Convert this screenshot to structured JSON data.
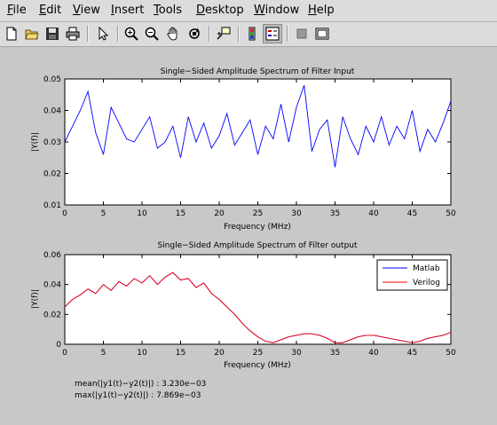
{
  "menu": [
    "File",
    "Edit",
    "View",
    "Insert",
    "Tools",
    "Desktop",
    "Window",
    "Help"
  ],
  "menu_mnemonics": [
    "F",
    "E",
    "V",
    "I",
    "T",
    "D",
    "W",
    "H"
  ],
  "toolbar": {
    "icons": [
      "new-figure-icon",
      "open-file-icon",
      "save-icon",
      "print-icon",
      "select-arrow-icon",
      "zoom-in-icon",
      "zoom-out-icon",
      "pan-hand-icon",
      "rotate-3d-icon",
      "data-cursor-icon",
      "colorbar-icon",
      "legend-icon",
      "hide-plot-tools-icon",
      "show-plot-tools-icon"
    ]
  },
  "colors": {
    "matlab": "#0000ff",
    "verilog": "#ff0000",
    "plot_bg": "#ffffff",
    "figure_bg": "#c8c8c8"
  },
  "stats": {
    "mean": "mean(|y1(t)−y2(t)|) : 3.230e−03",
    "max": "max(|y1(t)−y2(t)|) : 7.869e−03"
  },
  "chart_data": [
    {
      "type": "line",
      "title": "Single−Sided Amplitude Spectrum of Filter Input",
      "xlabel": "Frequency (MHz)",
      "ylabel": "|Y(f)|",
      "xlim": [
        0,
        50
      ],
      "ylim": [
        0.01,
        0.05
      ],
      "xticks": [
        0,
        5,
        10,
        15,
        20,
        25,
        30,
        35,
        40,
        45,
        50
      ],
      "yticks": [
        0.01,
        0.02,
        0.03,
        0.04,
        0.05
      ],
      "ytick_labels": [
        "0.01",
        "0.02",
        "0.03",
        "0.04",
        "0.05"
      ],
      "series": [
        {
          "color": "#0000ff",
          "x": [
            0,
            1,
            2,
            3,
            4,
            5,
            6,
            7,
            8,
            9,
            10,
            11,
            12,
            13,
            14,
            15,
            16,
            17,
            18,
            19,
            20,
            21,
            22,
            23,
            24,
            25,
            26,
            27,
            28,
            29,
            30,
            31,
            32,
            33,
            34,
            35,
            36,
            37,
            38,
            39,
            40,
            41,
            42,
            43,
            44,
            45,
            46,
            47,
            48,
            49,
            50
          ],
          "y": [
            0.03,
            0.035,
            0.04,
            0.046,
            0.033,
            0.026,
            0.041,
            0.036,
            0.031,
            0.03,
            0.034,
            0.038,
            0.028,
            0.03,
            0.035,
            0.025,
            0.038,
            0.03,
            0.036,
            0.028,
            0.032,
            0.039,
            0.029,
            0.033,
            0.037,
            0.026,
            0.035,
            0.031,
            0.042,
            0.03,
            0.041,
            0.048,
            0.027,
            0.034,
            0.037,
            0.022,
            0.038,
            0.031,
            0.026,
            0.035,
            0.03,
            0.038,
            0.029,
            0.035,
            0.031,
            0.04,
            0.027,
            0.034,
            0.03,
            0.036,
            0.043
          ]
        }
      ]
    },
    {
      "type": "line",
      "title": "Single−Sided Amplitude Spectrum of Filter output",
      "xlabel": "Frequency (MHz)",
      "ylabel": "|Y(f)|",
      "xlim": [
        0,
        50
      ],
      "ylim": [
        0,
        0.06
      ],
      "xticks": [
        0,
        5,
        10,
        15,
        20,
        25,
        30,
        35,
        40,
        45,
        50
      ],
      "yticks": [
        0,
        0.02,
        0.04,
        0.06
      ],
      "ytick_labels": [
        "0",
        "0.02",
        "0.04",
        "0.06"
      ],
      "legend": "top-right",
      "series": [
        {
          "name": "Matlab",
          "color": "#0000ff",
          "x": [
            0,
            1,
            2,
            3,
            4,
            5,
            6,
            7,
            8,
            9,
            10,
            11,
            12,
            13,
            14,
            15,
            16,
            17,
            18,
            19,
            20,
            21,
            22,
            23,
            24,
            25,
            26,
            27,
            28,
            29,
            30,
            31,
            32,
            33,
            34,
            35,
            36,
            37,
            38,
            39,
            40,
            41,
            42,
            43,
            44,
            45,
            46,
            47,
            48,
            49,
            50
          ],
          "y": [
            0.025,
            0.03,
            0.033,
            0.037,
            0.034,
            0.04,
            0.036,
            0.042,
            0.039,
            0.044,
            0.041,
            0.046,
            0.04,
            0.045,
            0.048,
            0.043,
            0.044,
            0.038,
            0.041,
            0.034,
            0.03,
            0.025,
            0.02,
            0.014,
            0.009,
            0.005,
            0.002,
            0.001,
            0.003,
            0.005,
            0.006,
            0.007,
            0.007,
            0.006,
            0.004,
            0.001,
            0.001,
            0.003,
            0.005,
            0.006,
            0.006,
            0.005,
            0.004,
            0.003,
            0.002,
            0.001,
            0.002,
            0.004,
            0.005,
            0.006,
            0.008
          ]
        },
        {
          "name": "Verilog",
          "color": "#ff0000",
          "x": [
            0,
            1,
            2,
            3,
            4,
            5,
            6,
            7,
            8,
            9,
            10,
            11,
            12,
            13,
            14,
            15,
            16,
            17,
            18,
            19,
            20,
            21,
            22,
            23,
            24,
            25,
            26,
            27,
            28,
            29,
            30,
            31,
            32,
            33,
            34,
            35,
            36,
            37,
            38,
            39,
            40,
            41,
            42,
            43,
            44,
            45,
            46,
            47,
            48,
            49,
            50
          ],
          "y": [
            0.025,
            0.03,
            0.033,
            0.037,
            0.034,
            0.04,
            0.036,
            0.042,
            0.039,
            0.044,
            0.041,
            0.046,
            0.04,
            0.045,
            0.048,
            0.043,
            0.044,
            0.038,
            0.041,
            0.034,
            0.03,
            0.025,
            0.02,
            0.014,
            0.009,
            0.005,
            0.002,
            0.001,
            0.003,
            0.005,
            0.006,
            0.007,
            0.007,
            0.006,
            0.004,
            0.001,
            0.001,
            0.003,
            0.005,
            0.006,
            0.006,
            0.005,
            0.004,
            0.003,
            0.002,
            0.001,
            0.002,
            0.004,
            0.005,
            0.006,
            0.008
          ]
        }
      ]
    }
  ]
}
